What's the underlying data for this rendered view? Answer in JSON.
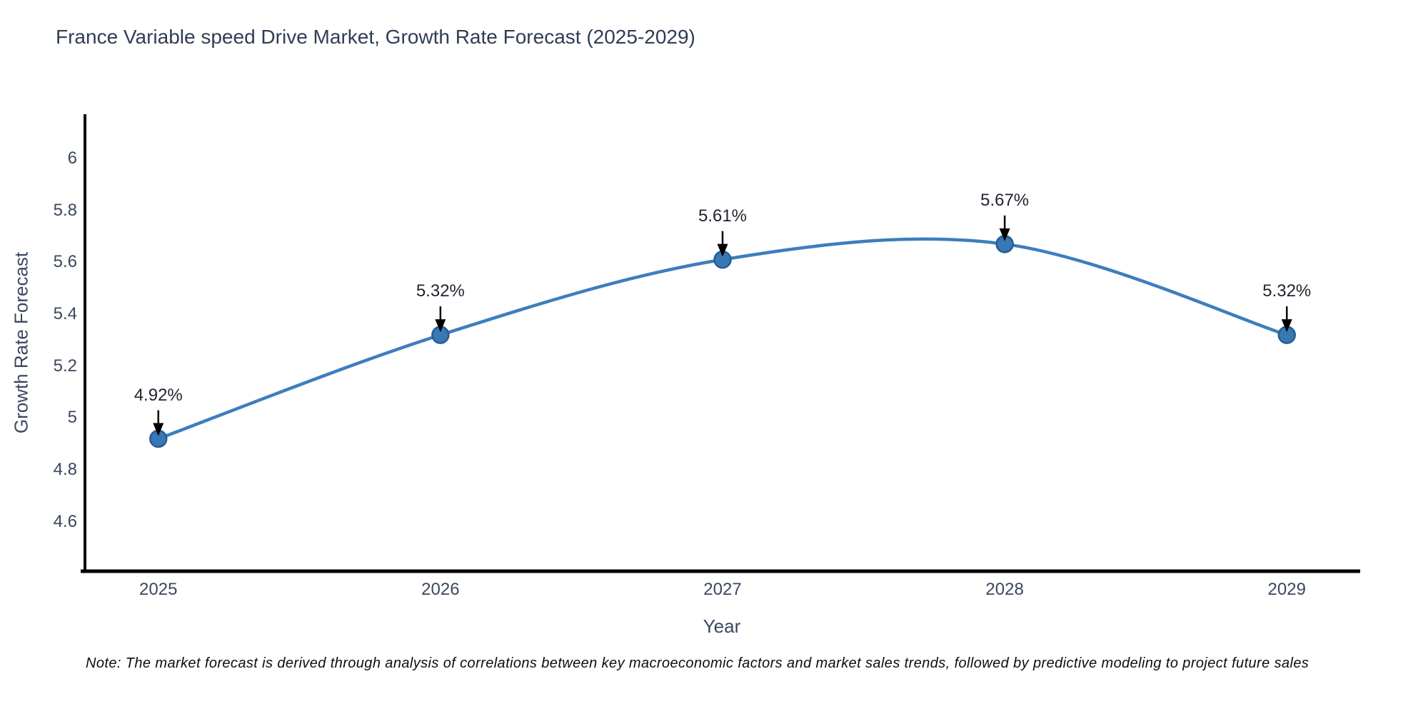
{
  "page": {
    "background": "#ffffff"
  },
  "chart_data": {
    "type": "line",
    "title": "France Variable speed Drive Market, Growth Rate Forecast (2025-2029)",
    "xlabel": "Year",
    "ylabel": "Growth Rate Forecast",
    "x": [
      2025,
      2026,
      2027,
      2028,
      2029
    ],
    "xtick_labels": [
      "2025",
      "2026",
      "2027",
      "2028",
      "2029"
    ],
    "series": [
      {
        "name": "Growth Rate Forecast",
        "values": [
          4.92,
          5.32,
          5.61,
          5.67,
          5.32
        ],
        "point_labels": [
          "4.92%",
          "5.32%",
          "5.61%",
          "5.67%",
          "5.32%"
        ]
      }
    ],
    "yticks": [
      4.6,
      4.8,
      5,
      5.2,
      5.4,
      5.6,
      5.8,
      6
    ],
    "ytick_labels": [
      "4.6",
      "4.8",
      "5",
      "5.2",
      "5.4",
      "5.6",
      "5.8",
      "6"
    ],
    "xlim": [
      2024.74,
      2029.26
    ],
    "ylim": [
      4.41,
      6.17
    ],
    "grid": false,
    "legend": false,
    "curve_style": "spline",
    "annotation_style": "black-down-arrow",
    "colors": {
      "line": "#3d7ebd",
      "marker_fill": "#3778b5",
      "marker_edge": "#275d91",
      "axis": "#000000",
      "arrow": "#000000",
      "title_text": "#2f3d56",
      "tick_text": "#3a475e",
      "annotation_text": "#1e242e"
    },
    "note": "Note: The market forecast is derived through analysis of correlations between key macroeconomic factors and market sales trends, followed by predictive modeling to project future sales"
  }
}
